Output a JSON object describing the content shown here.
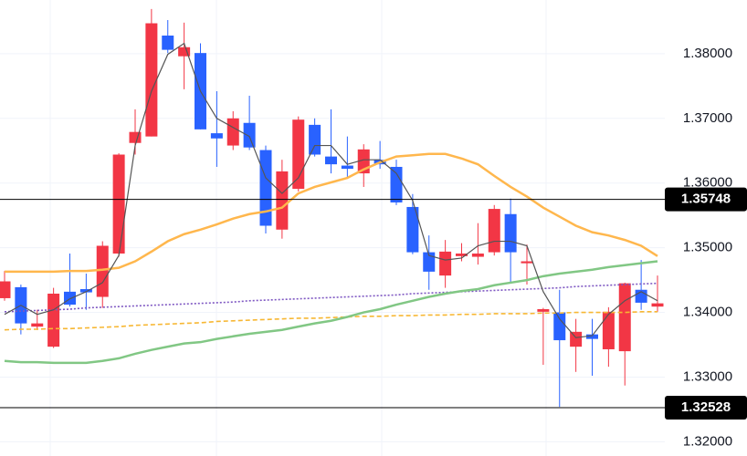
{
  "chart_data": {
    "type": "candlestick",
    "categories": [
      null,
      null,
      null,
      null,
      null,
      null,
      null,
      null,
      null,
      null,
      null,
      null,
      null,
      null,
      null,
      null,
      null,
      null,
      null,
      null,
      null,
      null,
      null,
      null,
      null,
      null,
      null,
      null,
      null,
      null,
      null,
      null,
      null,
      null,
      null,
      null,
      null,
      null,
      null,
      null,
      null
    ],
    "open": [
      1.3422,
      1.3439,
      1.3378,
      1.3347,
      1.3432,
      1.3436,
      1.3424,
      1.3491,
      1.3662,
      1.3672,
      1.3828,
      1.3796,
      1.3801,
      1.3677,
      1.3658,
      1.3693,
      1.3651,
      1.3528,
      1.3591,
      1.369,
      1.3641,
      1.3627,
      1.3615,
      1.3636,
      1.3625,
      1.3563,
      1.3493,
      1.3457,
      1.3487,
      1.3486,
      1.3493,
      1.3552,
      1.3476,
      1.3401,
      1.34,
      1.3347,
      1.3366,
      1.3343,
      1.334,
      1.3435,
      1.3409
    ],
    "high": [
      1.3464,
      1.3443,
      1.3404,
      1.3438,
      1.3491,
      1.346,
      1.351,
      1.3646,
      1.3714,
      1.3869,
      1.3852,
      1.3848,
      1.3816,
      1.3742,
      1.3711,
      1.3735,
      1.3658,
      1.3636,
      1.3703,
      1.37,
      1.3714,
      1.3672,
      1.366,
      1.3665,
      1.3636,
      1.3583,
      1.3519,
      1.3512,
      1.3507,
      1.3538,
      1.3566,
      1.3576,
      1.3505,
      1.3407,
      1.3435,
      1.339,
      1.339,
      1.3408,
      1.3446,
      1.3481,
      1.3457
    ],
    "low": [
      1.3418,
      1.3366,
      1.3373,
      1.3345,
      1.3409,
      1.3404,
      1.3407,
      1.3486,
      1.3644,
      1.3672,
      1.3801,
      1.3745,
      1.3683,
      1.3625,
      1.3651,
      1.3651,
      1.3522,
      1.3514,
      1.3587,
      1.3641,
      1.3615,
      1.3608,
      1.3594,
      1.3622,
      1.3566,
      1.349,
      1.3435,
      1.3438,
      1.3479,
      1.3474,
      1.3488,
      1.3446,
      1.3443,
      1.3319,
      1.3254,
      1.3308,
      1.3302,
      1.3316,
      1.3287,
      1.3404,
      1.3401
    ],
    "close": [
      1.3448,
      1.3383,
      1.3383,
      1.3429,
      1.3412,
      1.3431,
      1.3503,
      1.3644,
      1.3679,
      1.3847,
      1.3806,
      1.381,
      1.3683,
      1.3669,
      1.37,
      1.3655,
      1.3534,
      1.3618,
      1.3698,
      1.3644,
      1.3629,
      1.3622,
      1.3652,
      1.3629,
      1.357,
      1.3493,
      1.3463,
      1.3494,
      1.3491,
      1.3491,
      1.356,
      1.3493,
      1.3479,
      1.3405,
      1.3357,
      1.337,
      1.3359,
      1.3401,
      1.3445,
      1.3415,
      1.3414
    ],
    "up_color": "#f23645",
    "down_color": "#2962ff",
    "overlays": [
      {
        "color": "#7e57c2",
        "style": "dotted",
        "values": [
          1.3401,
          1.3402,
          1.3403,
          1.3404,
          1.3405,
          1.3407,
          1.3408,
          1.3409,
          1.341,
          1.3411,
          1.3412,
          1.3413,
          1.3414,
          1.3415,
          1.3416,
          1.3418,
          1.3419,
          1.342,
          1.3421,
          1.3422,
          1.3423,
          1.3424,
          1.3425,
          1.3426,
          1.3427,
          1.3429,
          1.343,
          1.3431,
          1.3432,
          1.3433,
          1.3434,
          1.3435,
          1.3436,
          1.3437,
          1.3438,
          1.344,
          1.3441,
          1.3442,
          1.3443,
          1.3444,
          1.3445
        ]
      },
      {
        "color": "#f7b733",
        "style": "dashed",
        "values": [
          1.3373,
          1.3374,
          1.3374,
          1.3375,
          1.3375,
          1.3376,
          1.3377,
          1.3378,
          1.338,
          1.3381,
          1.3382,
          1.3383,
          1.3384,
          1.3386,
          1.3387,
          1.3388,
          1.3389,
          1.339,
          1.3391,
          1.3391,
          1.3392,
          1.3393,
          1.3394,
          1.3394,
          1.3395,
          1.3395,
          1.3396,
          1.3396,
          1.3397,
          1.3397,
          1.3398,
          1.3398,
          1.3398,
          1.3399,
          1.3399,
          1.34,
          1.34,
          1.34,
          1.34,
          1.3401,
          1.3401
        ]
      },
      {
        "color": "#81c784",
        "style": "solid",
        "values": [
          1.3325,
          1.3323,
          1.3323,
          1.3322,
          1.3322,
          1.3322,
          1.3325,
          1.3329,
          1.3336,
          1.3342,
          1.3347,
          1.3352,
          1.3354,
          1.3359,
          1.3363,
          1.3367,
          1.337,
          1.3373,
          1.3378,
          1.3383,
          1.3387,
          1.3393,
          1.34,
          1.3405,
          1.3412,
          1.3418,
          1.3424,
          1.3429,
          1.3433,
          1.3436,
          1.3442,
          1.3446,
          1.345,
          1.3456,
          1.346,
          1.3463,
          1.3466,
          1.347,
          1.3473,
          1.3476,
          1.3479
        ]
      },
      {
        "color": "#ffb74d",
        "style": "solid",
        "values": [
          1.3463,
          1.3463,
          1.3463,
          1.3463,
          1.3464,
          1.3464,
          1.3466,
          1.3469,
          1.3479,
          1.3494,
          1.351,
          1.3521,
          1.3528,
          1.3536,
          1.3545,
          1.3552,
          1.3556,
          1.3562,
          1.3584,
          1.3594,
          1.3601,
          1.3608,
          1.3621,
          1.3632,
          1.3641,
          1.3643,
          1.3645,
          1.3645,
          1.3638,
          1.3629,
          1.3611,
          1.3594,
          1.3579,
          1.3562,
          1.3548,
          1.3534,
          1.3524,
          1.3519,
          1.3512,
          1.3503,
          1.3487
        ]
      },
      {
        "color": "#555555",
        "style": "thin",
        "values": [
          1.3397,
          1.3411,
          1.3397,
          1.3404,
          1.3421,
          1.3432,
          1.3446,
          1.3488,
          1.3658,
          1.3742,
          1.3799,
          1.3816,
          1.3742,
          1.37,
          1.3686,
          1.3672,
          1.3608,
          1.3584,
          1.3608,
          1.3658,
          1.3658,
          1.3629,
          1.3636,
          1.3636,
          1.3615,
          1.3573,
          1.3488,
          1.3481,
          1.3484,
          1.3503,
          1.351,
          1.351,
          1.3503,
          1.3432,
          1.339,
          1.3361,
          1.3364,
          1.3397,
          1.3418,
          1.3432,
          1.3418
        ]
      }
    ],
    "price_lines": [
      {
        "value": 1.35748,
        "label": "1.35748"
      },
      {
        "value": 1.32528,
        "label": "1.32528"
      }
    ],
    "ylim": [
      1.3178,
      1.3883
    ],
    "yticks": [
      {
        "value": 1.32,
        "label": "1.32000"
      },
      {
        "value": 1.33,
        "label": "1.33000"
      },
      {
        "value": 1.34,
        "label": "1.34000"
      },
      {
        "value": 1.35,
        "label": "1.35000"
      },
      {
        "value": 1.36,
        "label": "1.36000"
      },
      {
        "value": 1.37,
        "label": "1.37000"
      },
      {
        "value": 1.38,
        "label": "1.38000"
      }
    ],
    "grid": true
  }
}
